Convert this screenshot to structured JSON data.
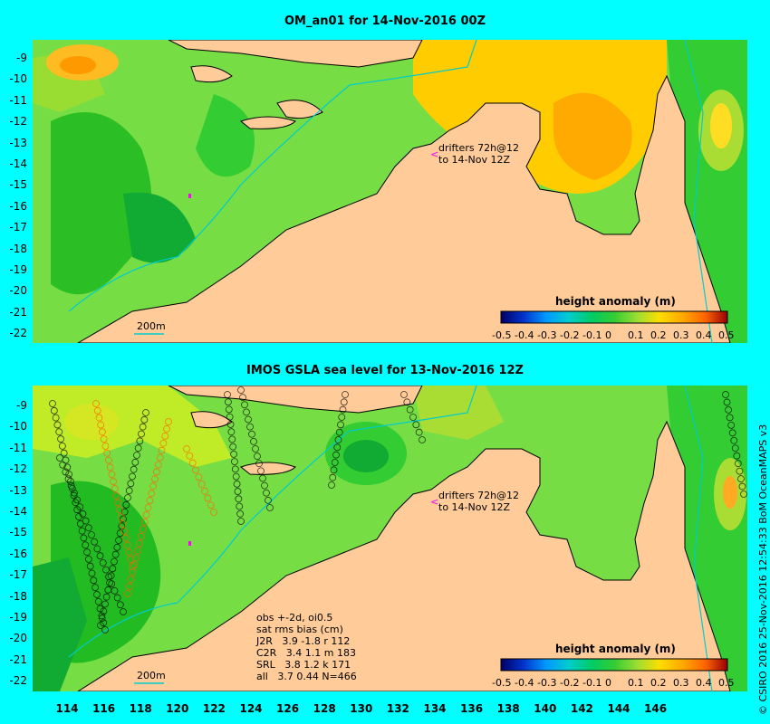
{
  "top": {
    "title": "OM_an01 for 14-Nov-2016 00Z",
    "drifters_line1": "drifters 72h@12",
    "drifters_line2": "to 14-Nov 12Z",
    "contour_label": "200m",
    "legend_title": "height anomaly (m)"
  },
  "bottom": {
    "title": "IMOS GSLA sea level  for 13-Nov-2016 12Z",
    "drifters_line1": "drifters 72h@12",
    "drifters_line2": "to 14-Nov 12Z",
    "contour_label": "200m",
    "legend_title": "height anomaly (m)",
    "stats": [
      "obs +-2d, oi0.5",
      "sat rms bias (cm)",
      "J2R   3.9 -1.8 r 112",
      "C2R   3.4 1.1 m 183",
      "SRL   3.8 1.2 k 171",
      "all   3.7 0.44 N=466"
    ]
  },
  "y_ticks": [
    "-9",
    "-10",
    "-11",
    "-12",
    "-13",
    "-14",
    "-15",
    "-16",
    "-17",
    "-18",
    "-19",
    "-20",
    "-21",
    "-22"
  ],
  "x_ticks": [
    "114",
    "116",
    "118",
    "120",
    "122",
    "124",
    "126",
    "128",
    "130",
    "132",
    "134",
    "136",
    "138",
    "140",
    "142",
    "144",
    "146"
  ],
  "legend_ticks": [
    "-0.5",
    "-0.4",
    "-0.3",
    "-0.2",
    "-0.1",
    "0",
    "0.1",
    "0.2",
    "0.3",
    "0.4",
    "0.5"
  ],
  "credit": "© CSIRO 2016  25-Nov-2016 12:54:33 BoM OceanMAPS v3",
  "colors": {
    "background": "#00ffff",
    "land": "#ffcc99",
    "ocean_green": "#33cc33",
    "ocean_yellow": "#ddee22",
    "ocean_orange": "#ffaa00",
    "contour_200m": "#00cccc"
  }
}
